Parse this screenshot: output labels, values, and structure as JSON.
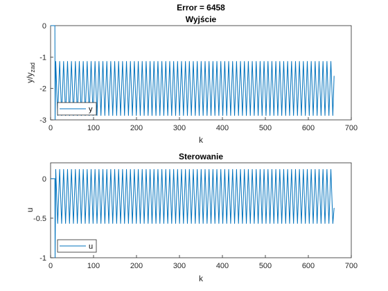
{
  "figure_title": "Error = 6458",
  "chart_data": [
    {
      "type": "line",
      "title": "Wyjście",
      "xlabel": "k",
      "ylabel": {
        "main": "y/y",
        "subscript": "zad"
      },
      "xlim": [
        0,
        700
      ],
      "ylim": [
        -3,
        0
      ],
      "xticks": [
        "0",
        "100",
        "200",
        "300",
        "400",
        "500",
        "600",
        "700"
      ],
      "yticks": [
        "0",
        "-1",
        "-2",
        "-3"
      ],
      "grid": false,
      "legend_location": "bottom-left",
      "series": [
        {
          "name": "y",
          "color": "#0072bd",
          "initial_value": 0,
          "step_start_k": 1,
          "step_end_k": 10,
          "transient_min": -3.0,
          "oscillation": {
            "start_k": 12,
            "end_k": 660,
            "period_k": 9.15,
            "max": -1.13,
            "min": -2.87,
            "final_value": -1.6
          }
        }
      ]
    },
    {
      "type": "line",
      "title": "Sterowanie",
      "xlabel": "k",
      "ylabel": {
        "main": "u",
        "subscript": ""
      },
      "xlim": [
        0,
        700
      ],
      "ylim": [
        -1,
        0.2
      ],
      "xticks": [
        "0",
        "100",
        "200",
        "300",
        "400",
        "500",
        "600",
        "700"
      ],
      "yticks": [
        "0",
        "-0.5",
        "-1"
      ],
      "grid": false,
      "legend_location": "bottom-left",
      "series": [
        {
          "name": "u",
          "color": "#0072bd",
          "initial_value": 0,
          "step_start_k": 1,
          "step_end_k": 10,
          "transient_min": -1.0,
          "oscillation": {
            "start_k": 12,
            "end_k": 660,
            "period_k": 9.15,
            "max": 0.12,
            "min": -0.57,
            "final_value": -0.37
          }
        }
      ]
    }
  ]
}
